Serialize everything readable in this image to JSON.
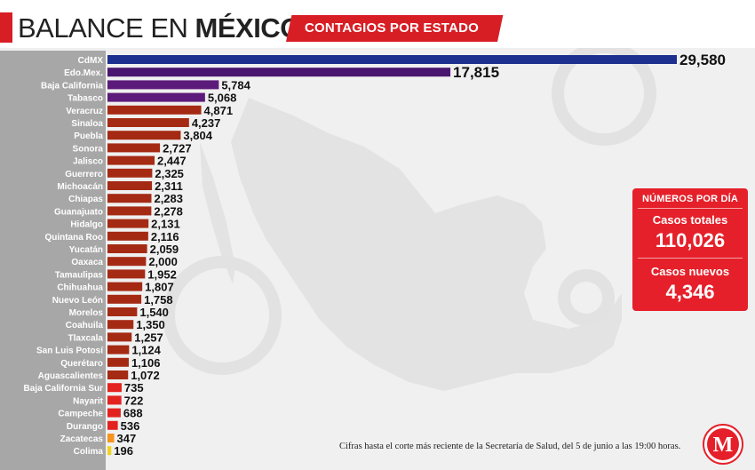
{
  "header": {
    "title_thin": "BALANCE EN ",
    "title_bold": "MÉXICO",
    "subtitle": "CONTAGIOS POR ESTADO"
  },
  "stats": {
    "heading": "NÚMEROS POR DÍA",
    "total_label": "Casos totales",
    "total_value": "110,026",
    "new_label": "Casos nuevos",
    "new_value": "4,346"
  },
  "footnote": "Cifras hasta el corte más reciente de la Secretaría de Salud, del 5 de junio a las 19:00 horas.",
  "logo": {
    "letter": "M",
    "color": "#e5202a"
  },
  "colors": {
    "accent_red": "#d81e25",
    "panel_gray": "#a7a7a7"
  },
  "chart_data": {
    "type": "bar",
    "orientation": "horizontal",
    "categories": [
      "CdMX",
      "Edo.Mex.",
      "Baja California",
      "Tabasco",
      "Veracruz",
      "Sinaloa",
      "Puebla",
      "Sonora",
      "Jalisco",
      "Guerrero",
      "Michoacán",
      "Chiapas",
      "Guanajuato",
      "Hidalgo",
      "Quintana Roo",
      "Yucatán",
      "Oaxaca",
      "Tamaulipas",
      "Chihuahua",
      "Nuevo León",
      "Morelos",
      "Coahuila",
      "Tlaxcala",
      "San Luis Potosí",
      "Querétaro",
      "Aguascalientes",
      "Baja California Sur",
      "Nayarit",
      "Campeche",
      "Durango",
      "Zacatecas",
      "Colima"
    ],
    "values": [
      29580,
      17815,
      5784,
      5068,
      4871,
      4237,
      3804,
      2727,
      2447,
      2325,
      2311,
      2283,
      2278,
      2131,
      2116,
      2059,
      2000,
      1952,
      1807,
      1758,
      1540,
      1350,
      1257,
      1124,
      1106,
      1072,
      735,
      722,
      688,
      536,
      347,
      196
    ],
    "value_labels": [
      "29,580",
      "17,815",
      "5,784",
      "5,068",
      "4,871",
      "4,237",
      "3,804",
      "2,727",
      "2,447",
      "2,325",
      "2,311",
      "2,283",
      "2,278",
      "2,131",
      "2,116",
      "2,059",
      "2,000",
      "1,952",
      "1,807",
      "1,758",
      "1,540",
      "1,350",
      "1,257",
      "1,124",
      "1,106",
      "1,072",
      "735",
      "722",
      "688",
      "536",
      "347",
      "196"
    ],
    "bar_colors": [
      "#1d2f8f",
      "#4a1570",
      "#5c1a7a",
      "#5c1a7a",
      "#a52a14",
      "#a52a14",
      "#a52a14",
      "#a52a14",
      "#a52a14",
      "#a52a14",
      "#a52a14",
      "#a52a14",
      "#a52a14",
      "#a52a14",
      "#a52a14",
      "#a52a14",
      "#a52a14",
      "#a52a14",
      "#a52a14",
      "#a52a14",
      "#a52a14",
      "#a52a14",
      "#a52a14",
      "#a52a14",
      "#a52a14",
      "#a52a14",
      "#e3221f",
      "#e3221f",
      "#e3221f",
      "#e3221f",
      "#f7931e",
      "#f3d21c"
    ],
    "xlim": [
      0,
      29580
    ],
    "grid": false,
    "legend": "none"
  }
}
